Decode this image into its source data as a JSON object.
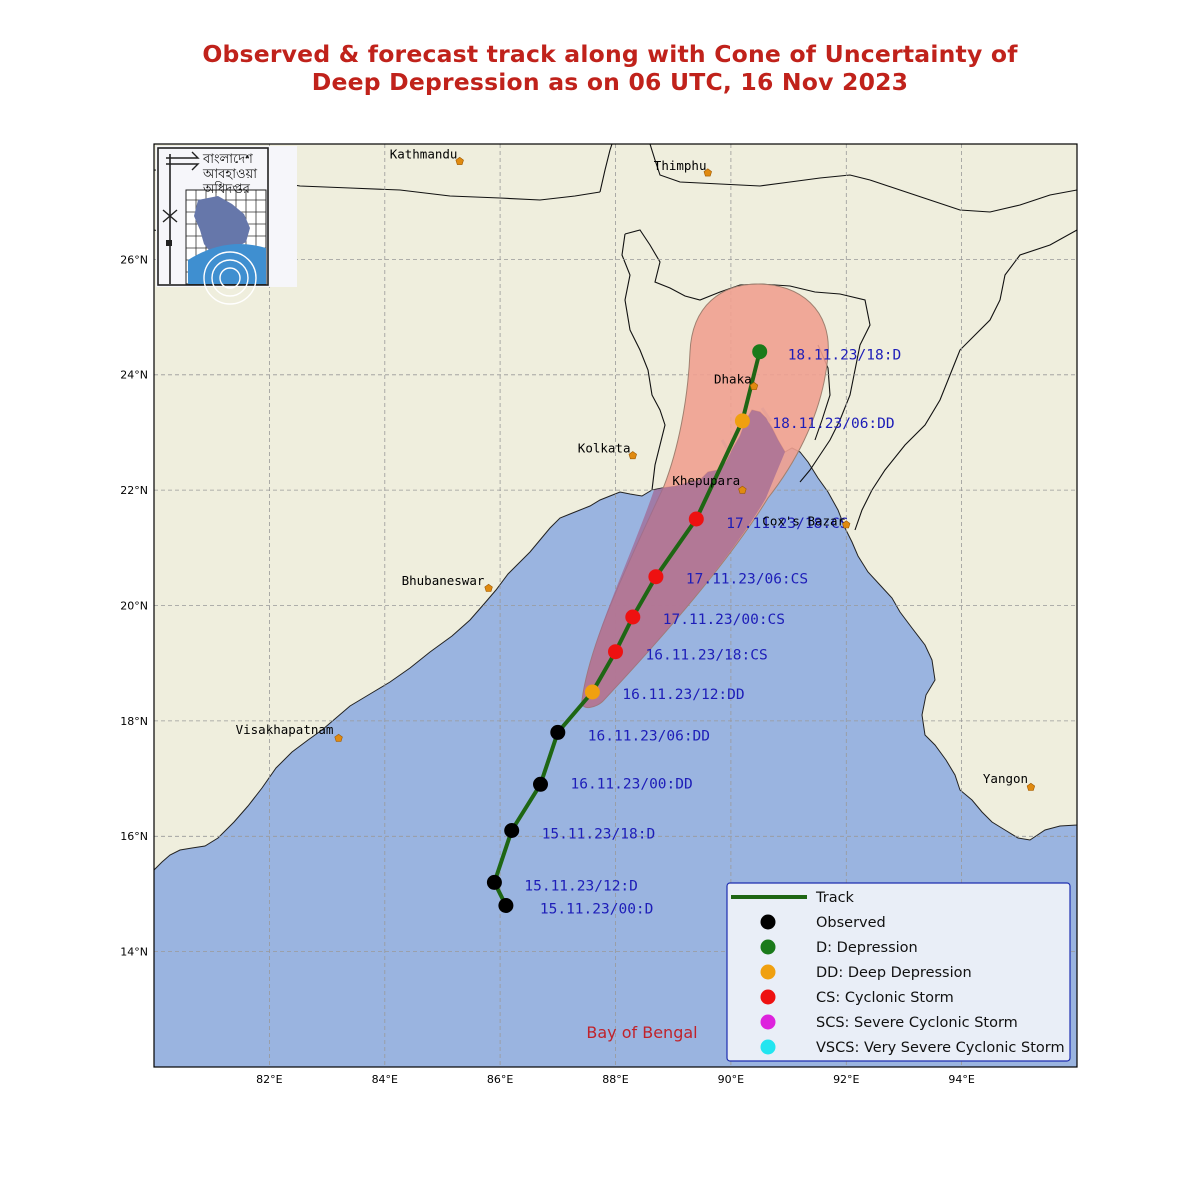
{
  "title": {
    "line1": "Observed & forecast track along with Cone of Uncertainty of",
    "line2": "Deep Depression as on 06 UTC, 16 Nov 2023"
  },
  "map": {
    "lon_range": [
      80,
      96
    ],
    "lat_range": [
      12,
      28
    ],
    "lon_ticks": [
      "82°E",
      "84°E",
      "86°E",
      "88°E",
      "90°E",
      "92°E",
      "94°E"
    ],
    "lat_ticks": [
      "14°N",
      "16°N",
      "18°N",
      "20°N",
      "22°N",
      "24°N",
      "26°N"
    ],
    "grid": true,
    "colors": {
      "land": "#efeedd",
      "sea": "#9ab4e0",
      "cone_light": "#f0a090",
      "track": "#1e6614",
      "labels": "#1d1db8",
      "title": "#c0221b"
    }
  },
  "logo": {
    "text_line1": "বাংলাদেশ",
    "text_line2": "আবহাওয়া",
    "text_line3": "অধিদপ্তর"
  },
  "sea_label": "Bay of Bengal",
  "cities": [
    {
      "name": "Kathmandu",
      "lon": 85.3,
      "lat": 27.7
    },
    {
      "name": "Thimphu",
      "lon": 89.6,
      "lat": 27.5
    },
    {
      "name": "Dhaka",
      "lon": 90.4,
      "lat": 23.8
    },
    {
      "name": "Kolkata",
      "lon": 88.3,
      "lat": 22.6
    },
    {
      "name": "Khepupara",
      "lon": 90.2,
      "lat": 22.0
    },
    {
      "name": "Cox's Bazar",
      "lon": 92.0,
      "lat": 21.4
    },
    {
      "name": "Bhubaneswar",
      "lon": 85.8,
      "lat": 20.3
    },
    {
      "name": "Visakhapatnam",
      "lon": 83.2,
      "lat": 17.7
    },
    {
      "name": "Yangon",
      "lon": 95.2,
      "lat": 16.85
    }
  ],
  "track_points": [
    {
      "label": "15.11.23/00:D",
      "lon": 86.1,
      "lat": 14.8,
      "category": "observed"
    },
    {
      "label": "15.11.23/12:D",
      "lon": 85.9,
      "lat": 15.2,
      "category": "observed"
    },
    {
      "label": "15.11.23/18:D",
      "lon": 86.2,
      "lat": 16.1,
      "category": "observed"
    },
    {
      "label": "16.11.23/00:DD",
      "lon": 86.7,
      "lat": 16.9,
      "category": "observed"
    },
    {
      "label": "16.11.23/06:DD",
      "lon": 87.0,
      "lat": 17.8,
      "category": "observed"
    },
    {
      "label": "16.11.23/12:DD",
      "lon": 87.6,
      "lat": 18.5,
      "category": "DD"
    },
    {
      "label": "16.11.23/18:CS",
      "lon": 88.0,
      "lat": 19.2,
      "category": "CS"
    },
    {
      "label": "17.11.23/00:CS",
      "lon": 88.3,
      "lat": 19.8,
      "category": "CS"
    },
    {
      "label": "17.11.23/06:CS",
      "lon": 88.7,
      "lat": 20.5,
      "category": "CS"
    },
    {
      "label": "17.11.23/18:CS",
      "lon": 89.4,
      "lat": 21.5,
      "category": "CS"
    },
    {
      "label": "18.11.23/06:DD",
      "lon": 90.2,
      "lat": 23.2,
      "category": "DD"
    },
    {
      "label": "18.11.23/18:D",
      "lon": 90.5,
      "lat": 24.4,
      "category": "D"
    }
  ],
  "category_colors": {
    "observed": "#000000",
    "D": "#1a7a1a",
    "DD": "#f0a010",
    "CS": "#ee1111",
    "SCS": "#dd22dd",
    "VSCS": "#22e5f0"
  },
  "legend": [
    {
      "label": "Track",
      "kind": "line",
      "color": "#1e6614"
    },
    {
      "label": "Observed",
      "kind": "dot",
      "color": "#000000"
    },
    {
      "label": "D: Depression",
      "kind": "dot",
      "color": "#1a7a1a"
    },
    {
      "label": "DD: Deep Depression",
      "kind": "dot",
      "color": "#f0a010"
    },
    {
      "label": "CS: Cyclonic Storm",
      "kind": "dot",
      "color": "#ee1111"
    },
    {
      "label": "SCS: Severe Cyclonic Storm",
      "kind": "dot",
      "color": "#dd22dd"
    },
    {
      "label": "VSCS: Very Severe Cyclonic Storm",
      "kind": "dot",
      "color": "#22e5f0"
    }
  ]
}
